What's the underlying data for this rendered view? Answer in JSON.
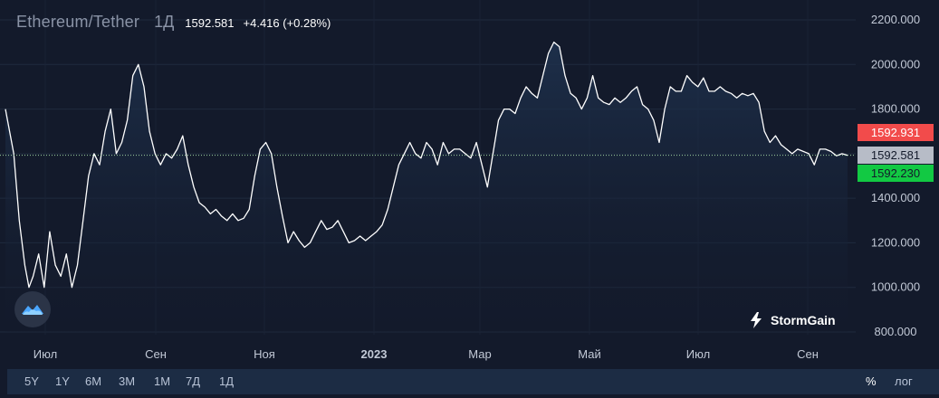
{
  "header": {
    "symbol": "Ethereum/Tether",
    "interval": "1Д",
    "price": "1592.581",
    "change": "+4.416 (+0.28%)"
  },
  "price_tags": {
    "ask": "1592.931",
    "last": "1592.581",
    "bid": "1592.230"
  },
  "brand": {
    "name": "StormGain",
    "icon": "stormgain-bolt-icon"
  },
  "logo_icon": "cloud-mountain-icon",
  "toolbar": {
    "ranges": [
      "5Y",
      "1Y",
      "6M",
      "3M",
      "1M",
      "7Д",
      "1Д"
    ],
    "percent_label": "%",
    "log_label": "лог"
  },
  "colors": {
    "background": "#131a2b",
    "line": "#ffffff",
    "ask": "#f24b4b",
    "bid": "#12c943",
    "last": "#b7bcc7",
    "toolbar": "#1c2c44"
  },
  "chart_data": {
    "type": "area",
    "y_ticks": [
      "800.000",
      "1000.000",
      "1200.000",
      "1400.000",
      "1600.000",
      "1800.000",
      "2000.000",
      "2200.000"
    ],
    "x_ticks": [
      "Июл",
      "Сен",
      "Ноя",
      "2023",
      "Мар",
      "Май",
      "Июл",
      "Сен"
    ],
    "ylim": [
      800,
      2200
    ],
    "grid": true,
    "last_price": 1592.581,
    "series": [
      {
        "points": [
          [
            0.0,
            1800
          ],
          [
            0.3,
            1600
          ],
          [
            0.5,
            1300
          ],
          [
            0.7,
            1100
          ],
          [
            0.85,
            1000
          ],
          [
            1.0,
            1050
          ],
          [
            1.2,
            1150
          ],
          [
            1.4,
            1000
          ],
          [
            1.6,
            1250
          ],
          [
            1.8,
            1100
          ],
          [
            2.0,
            1050
          ],
          [
            2.2,
            1150
          ],
          [
            2.4,
            1000
          ],
          [
            2.6,
            1100
          ],
          [
            2.8,
            1300
          ],
          [
            3.0,
            1500
          ],
          [
            3.2,
            1600
          ],
          [
            3.4,
            1550
          ],
          [
            3.6,
            1700
          ],
          [
            3.8,
            1800
          ],
          [
            4.0,
            1600
          ],
          [
            4.2,
            1650
          ],
          [
            4.4,
            1750
          ],
          [
            4.6,
            1950
          ],
          [
            4.8,
            2000
          ],
          [
            5.0,
            1900
          ],
          [
            5.2,
            1700
          ],
          [
            5.4,
            1600
          ],
          [
            5.6,
            1550
          ],
          [
            5.8,
            1600
          ],
          [
            6.0,
            1580
          ],
          [
            6.2,
            1620
          ],
          [
            6.4,
            1680
          ],
          [
            6.6,
            1550
          ],
          [
            6.8,
            1450
          ],
          [
            7.0,
            1380
          ],
          [
            7.2,
            1360
          ],
          [
            7.4,
            1330
          ],
          [
            7.6,
            1350
          ],
          [
            7.8,
            1320
          ],
          [
            8.0,
            1300
          ],
          [
            8.2,
            1330
          ],
          [
            8.4,
            1300
          ],
          [
            8.6,
            1310
          ],
          [
            8.8,
            1350
          ],
          [
            9.0,
            1500
          ],
          [
            9.2,
            1620
          ],
          [
            9.4,
            1650
          ],
          [
            9.6,
            1600
          ],
          [
            9.8,
            1450
          ],
          [
            10.0,
            1320
          ],
          [
            10.2,
            1200
          ],
          [
            10.4,
            1250
          ],
          [
            10.6,
            1210
          ],
          [
            10.8,
            1180
          ],
          [
            11.0,
            1200
          ],
          [
            11.2,
            1250
          ],
          [
            11.4,
            1300
          ],
          [
            11.6,
            1260
          ],
          [
            11.8,
            1270
          ],
          [
            12.0,
            1300
          ],
          [
            12.2,
            1250
          ],
          [
            12.4,
            1200
          ],
          [
            12.6,
            1210
          ],
          [
            12.8,
            1230
          ],
          [
            13.0,
            1210
          ],
          [
            13.2,
            1230
          ],
          [
            13.4,
            1250
          ],
          [
            13.6,
            1280
          ],
          [
            13.8,
            1350
          ],
          [
            14.0,
            1450
          ],
          [
            14.2,
            1550
          ],
          [
            14.4,
            1600
          ],
          [
            14.6,
            1650
          ],
          [
            14.8,
            1600
          ],
          [
            15.0,
            1580
          ],
          [
            15.2,
            1650
          ],
          [
            15.4,
            1620
          ],
          [
            15.6,
            1550
          ],
          [
            15.8,
            1650
          ],
          [
            16.0,
            1600
          ],
          [
            16.2,
            1620
          ],
          [
            16.4,
            1620
          ],
          [
            16.6,
            1600
          ],
          [
            16.8,
            1580
          ],
          [
            17.0,
            1650
          ],
          [
            17.2,
            1550
          ],
          [
            17.4,
            1450
          ],
          [
            17.6,
            1600
          ],
          [
            17.8,
            1750
          ],
          [
            18.0,
            1800
          ],
          [
            18.2,
            1800
          ],
          [
            18.4,
            1780
          ],
          [
            18.6,
            1850
          ],
          [
            18.8,
            1900
          ],
          [
            19.0,
            1870
          ],
          [
            19.2,
            1850
          ],
          [
            19.4,
            1950
          ],
          [
            19.6,
            2050
          ],
          [
            19.8,
            2100
          ],
          [
            20.0,
            2080
          ],
          [
            20.2,
            1950
          ],
          [
            20.4,
            1870
          ],
          [
            20.6,
            1850
          ],
          [
            20.8,
            1800
          ],
          [
            21.0,
            1850
          ],
          [
            21.2,
            1950
          ],
          [
            21.4,
            1850
          ],
          [
            21.6,
            1830
          ],
          [
            21.8,
            1820
          ],
          [
            22.0,
            1850
          ],
          [
            22.2,
            1830
          ],
          [
            22.4,
            1850
          ],
          [
            22.6,
            1880
          ],
          [
            22.8,
            1900
          ],
          [
            23.0,
            1820
          ],
          [
            23.2,
            1800
          ],
          [
            23.4,
            1750
          ],
          [
            23.6,
            1650
          ],
          [
            23.8,
            1800
          ],
          [
            24.0,
            1900
          ],
          [
            24.2,
            1880
          ],
          [
            24.4,
            1880
          ],
          [
            24.6,
            1950
          ],
          [
            24.8,
            1920
          ],
          [
            25.0,
            1900
          ],
          [
            25.2,
            1940
          ],
          [
            25.4,
            1880
          ],
          [
            25.6,
            1880
          ],
          [
            25.8,
            1900
          ],
          [
            26.0,
            1880
          ],
          [
            26.2,
            1870
          ],
          [
            26.4,
            1850
          ],
          [
            26.6,
            1870
          ],
          [
            26.8,
            1860
          ],
          [
            27.0,
            1870
          ],
          [
            27.2,
            1830
          ],
          [
            27.4,
            1700
          ],
          [
            27.6,
            1650
          ],
          [
            27.8,
            1680
          ],
          [
            28.0,
            1640
          ],
          [
            28.2,
            1620
          ],
          [
            28.4,
            1600
          ],
          [
            28.6,
            1620
          ],
          [
            28.8,
            1610
          ],
          [
            29.0,
            1600
          ],
          [
            29.2,
            1550
          ],
          [
            29.4,
            1620
          ],
          [
            29.6,
            1620
          ],
          [
            29.8,
            1610
          ],
          [
            30.0,
            1590
          ],
          [
            30.2,
            1600
          ],
          [
            30.4,
            1592.581
          ]
        ]
      }
    ]
  }
}
